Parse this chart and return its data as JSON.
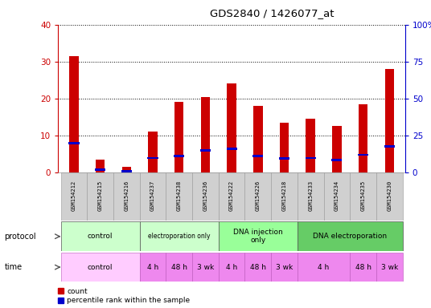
{
  "title": "GDS2840 / 1426077_at",
  "samples": [
    "GSM154212",
    "GSM154215",
    "GSM154216",
    "GSM154237",
    "GSM154238",
    "GSM154236",
    "GSM154222",
    "GSM154226",
    "GSM154218",
    "GSM154233",
    "GSM154234",
    "GSM154235",
    "GSM154230"
  ],
  "count_values": [
    31.5,
    3.5,
    1.5,
    11.0,
    19.0,
    20.5,
    24.0,
    18.0,
    13.5,
    14.5,
    12.5,
    18.5,
    28.0
  ],
  "percentile_values": [
    20.0,
    1.8,
    1.0,
    9.8,
    11.0,
    15.0,
    16.0,
    11.0,
    9.5,
    9.8,
    8.5,
    12.0,
    17.5
  ],
  "bar_color": "#cc0000",
  "percentile_color": "#0000cc",
  "ylim_left": [
    0,
    40
  ],
  "ylim_right": [
    0,
    100
  ],
  "yticks_left": [
    0,
    10,
    20,
    30,
    40
  ],
  "yticks_right": [
    0,
    25,
    50,
    75,
    100
  ],
  "ytick_labels_right": [
    "0",
    "25",
    "50",
    "75",
    "100%"
  ],
  "bar_width": 0.35,
  "background_color": "#ffffff",
  "left_tick_color": "#cc0000",
  "right_tick_color": "#0000cc",
  "proto_groups": [
    {
      "label": "control",
      "start": 0,
      "end": 3,
      "color": "#ccffcc"
    },
    {
      "label": "electroporation only",
      "start": 3,
      "end": 6,
      "color": "#ccffcc"
    },
    {
      "label": "DNA injection\nonly",
      "start": 6,
      "end": 9,
      "color": "#99ff99"
    },
    {
      "label": "DNA electroporation",
      "start": 9,
      "end": 13,
      "color": "#66cc66"
    }
  ],
  "time_groups": [
    {
      "label": "control",
      "start": 0,
      "end": 3,
      "color": "#ffccff"
    },
    {
      "label": "4 h",
      "start": 3,
      "end": 4,
      "color": "#ee88ee"
    },
    {
      "label": "48 h",
      "start": 4,
      "end": 5,
      "color": "#ee88ee"
    },
    {
      "label": "3 wk",
      "start": 5,
      "end": 6,
      "color": "#ee88ee"
    },
    {
      "label": "4 h",
      "start": 6,
      "end": 7,
      "color": "#ee88ee"
    },
    {
      "label": "48 h",
      "start": 7,
      "end": 8,
      "color": "#ee88ee"
    },
    {
      "label": "3 wk",
      "start": 8,
      "end": 9,
      "color": "#ee88ee"
    },
    {
      "label": "4 h",
      "start": 9,
      "end": 11,
      "color": "#ee88ee"
    },
    {
      "label": "48 h",
      "start": 11,
      "end": 12,
      "color": "#ee88ee"
    },
    {
      "label": "3 wk",
      "start": 12,
      "end": 13,
      "color": "#ee88ee"
    }
  ]
}
